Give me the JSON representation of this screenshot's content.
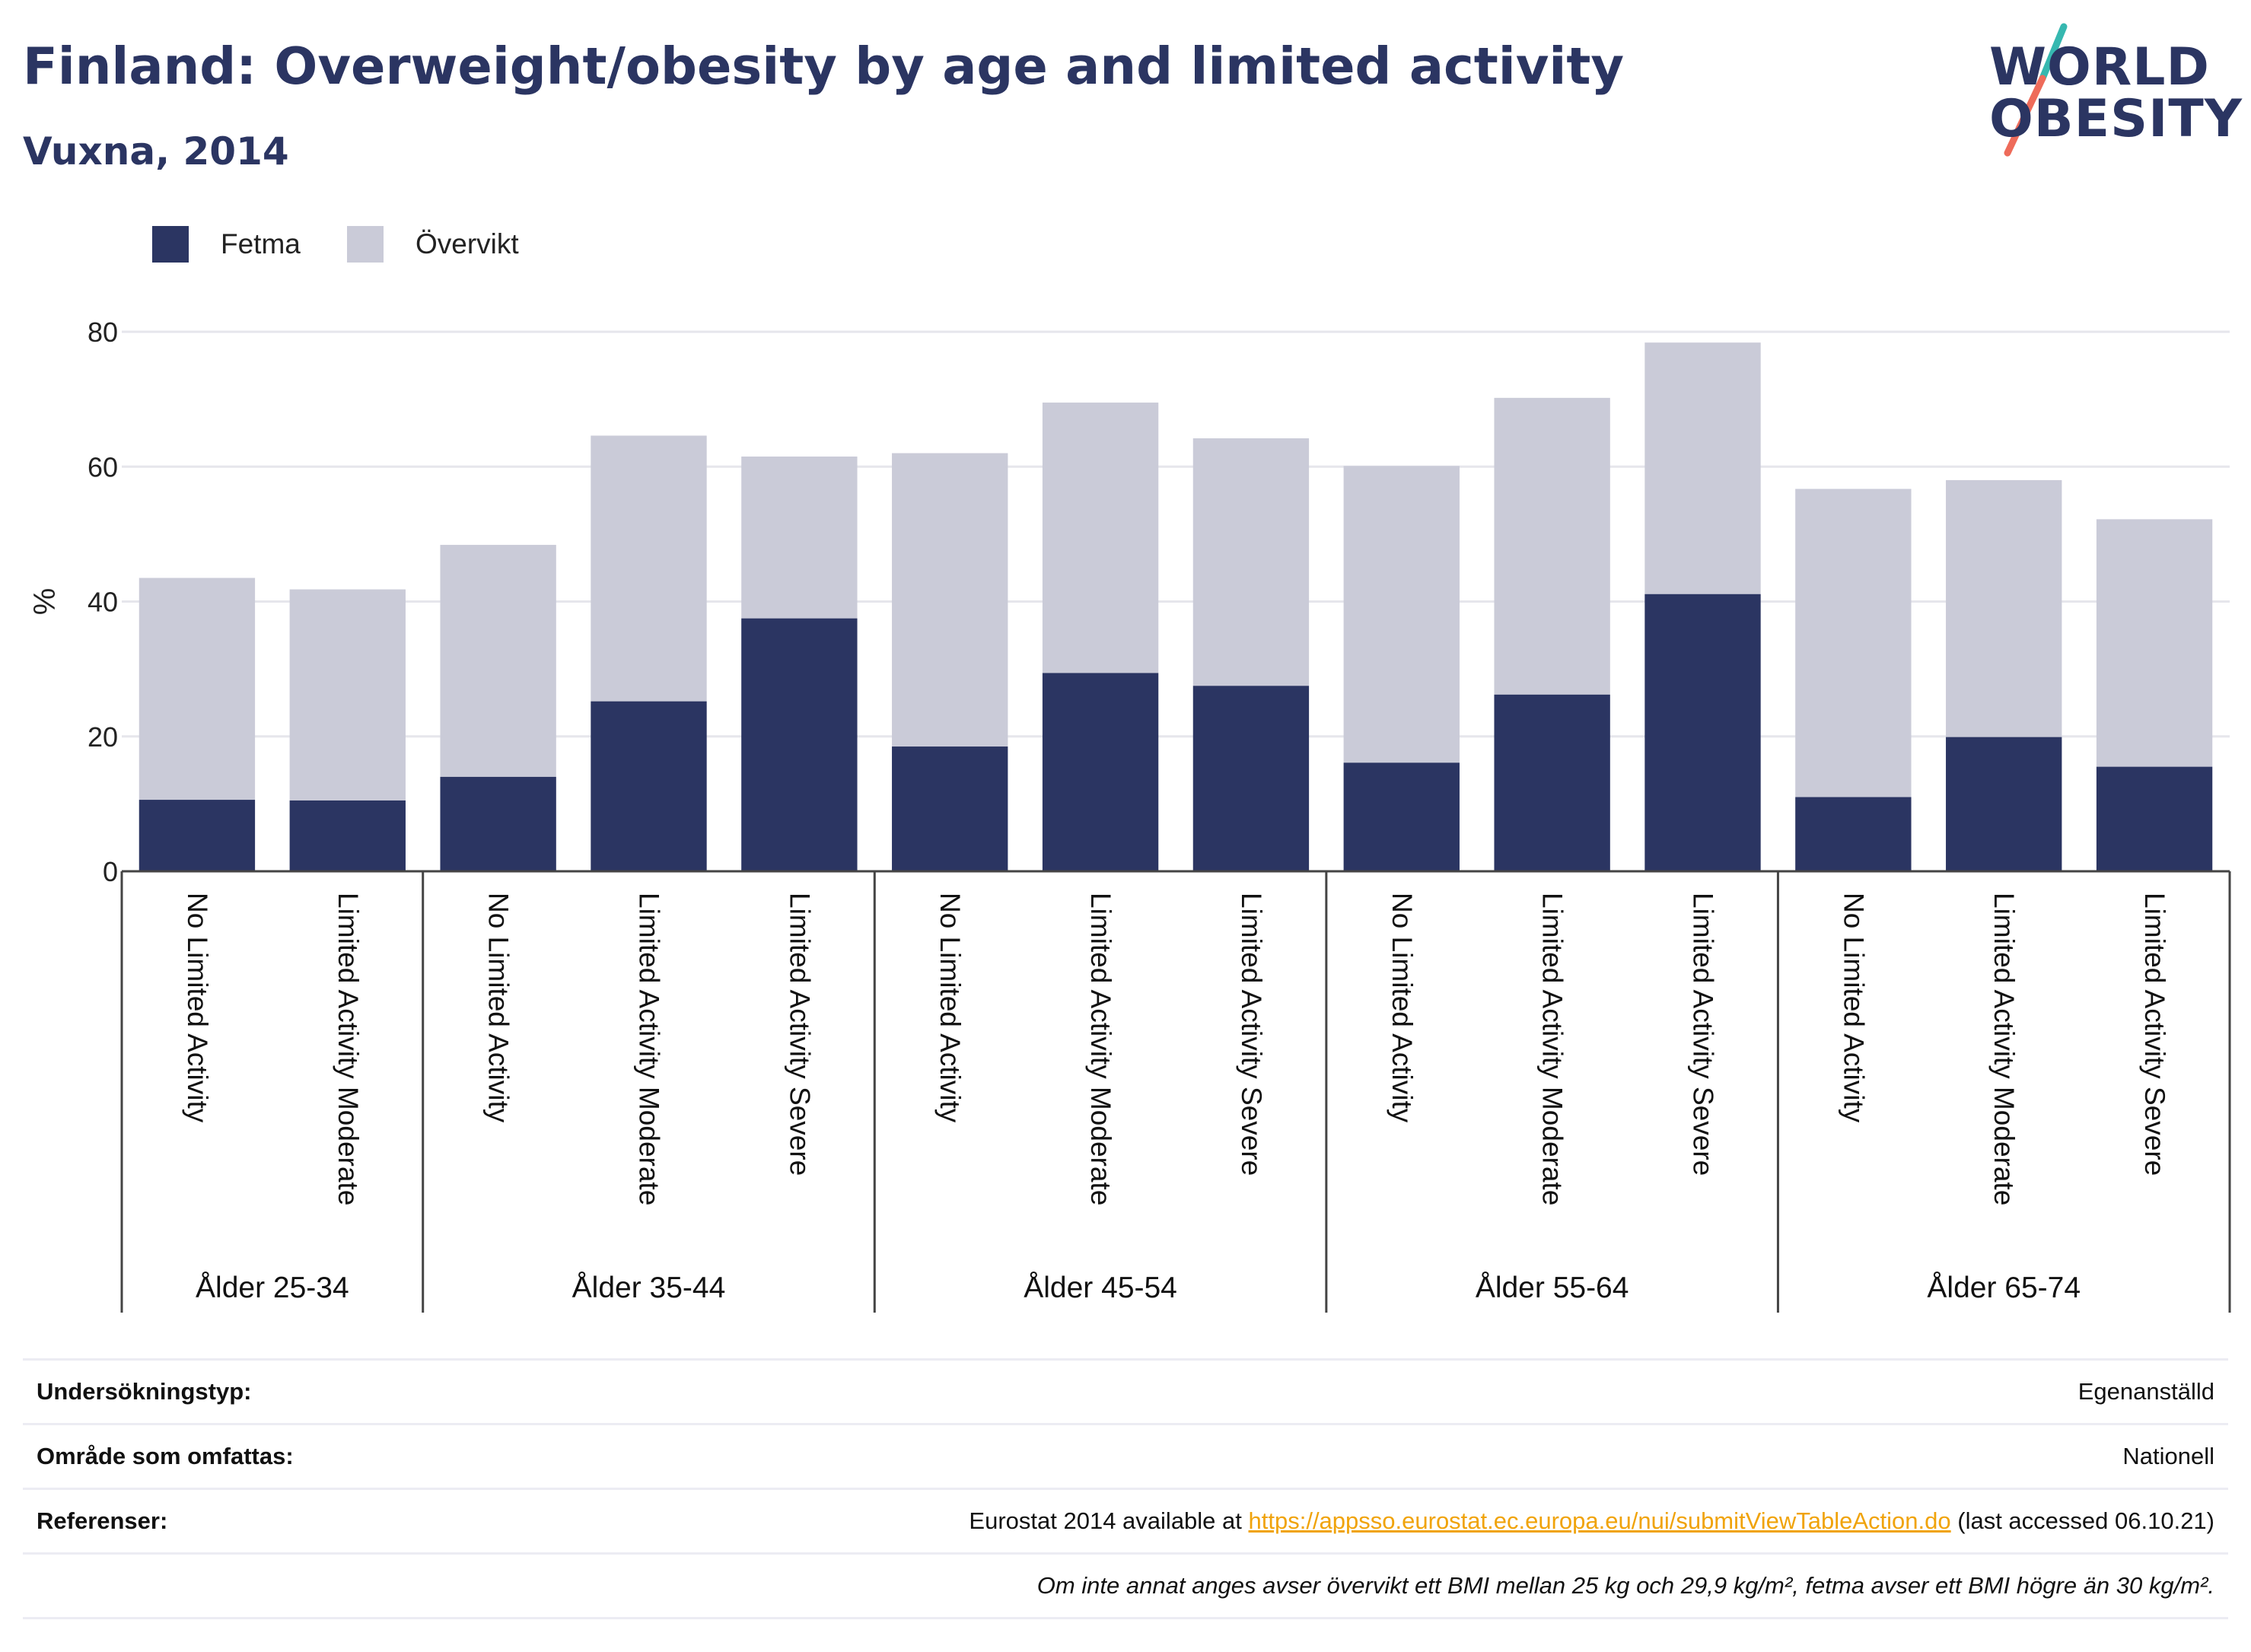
{
  "header": {
    "title": "Finland: Overweight/obesity by age and limited activity",
    "subtitle": "Vuxna, 2014"
  },
  "logo": {
    "line1": "WORLD",
    "line2": "OBESITY",
    "colors": {
      "text": "#2b3562",
      "slash_top": "#36b8b0",
      "slash_bottom": "#ee6b5a"
    }
  },
  "legend": {
    "items": [
      {
        "label": "Fetma",
        "color": "#2b3562"
      },
      {
        "label": "Övervikt",
        "color": "#cacbd8"
      }
    ]
  },
  "chart_data": {
    "type": "bar",
    "stacked": true,
    "title": "Finland: Overweight/obesity by age and limited activity",
    "subtitle": "Vuxna, 2014",
    "ylabel": "%",
    "ylim": [
      0,
      80
    ],
    "yticks": [
      0,
      20,
      40,
      60,
      80
    ],
    "grid": true,
    "legend_position": "top-left",
    "groups": [
      {
        "label": "Ålder 25-34",
        "categories": [
          "No Limited Activity",
          "Limited Activity Moderate"
        ]
      },
      {
        "label": "Ålder 35-44",
        "categories": [
          "No Limited Activity",
          "Limited Activity Moderate",
          "Limited Activity Severe"
        ]
      },
      {
        "label": "Ålder 45-54",
        "categories": [
          "No Limited Activity",
          "Limited Activity Moderate",
          "Limited Activity Severe"
        ]
      },
      {
        "label": "Ålder 55-64",
        "categories": [
          "No Limited Activity",
          "Limited Activity Moderate",
          "Limited Activity Severe"
        ]
      },
      {
        "label": "Ålder 65-74",
        "categories": [
          "No Limited Activity",
          "Limited Activity Moderate",
          "Limited Activity Severe"
        ]
      }
    ],
    "series": [
      {
        "name": "Fetma",
        "color": "#2b3562",
        "values": [
          10.6,
          10.5,
          14.0,
          25.2,
          37.5,
          18.5,
          29.4,
          27.5,
          16.1,
          26.2,
          41.1,
          11.0,
          19.9,
          15.5
        ]
      },
      {
        "name": "Övervikt",
        "color": "#cacbd8",
        "values": [
          32.9,
          31.3,
          34.4,
          39.4,
          24.0,
          43.5,
          40.1,
          36.7,
          44.0,
          44.0,
          37.3,
          45.7,
          38.1,
          36.7
        ]
      }
    ]
  },
  "info": {
    "rows": [
      {
        "key": "Undersökningstyp:",
        "value": "Egenanställd"
      },
      {
        "key": "Område som omfattas:",
        "value": "Nationell"
      },
      {
        "key": "Referenser:",
        "pre": "Eurostat 2014 available at ",
        "link": "https://appsso.eurostat.ec.europa.eu/nui/submitViewTableAction.do",
        "post": " (last accessed 06.10.21)"
      }
    ],
    "note": "Om inte annat anges avser övervikt ett BMI mellan 25 kg och 29,9 kg/m², fetma avser ett BMI högre än 30 kg/m²."
  }
}
